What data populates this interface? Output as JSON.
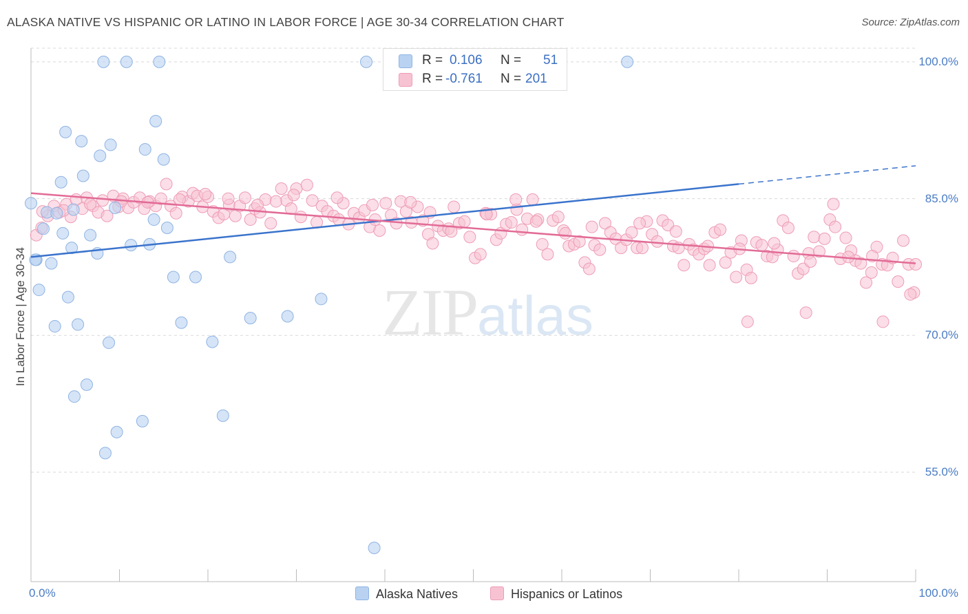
{
  "title": "ALASKA NATIVE VS HISPANIC OR LATINO IN LABOR FORCE | AGE 30-34 CORRELATION CHART",
  "source": "Source: ZipAtlas.com",
  "watermark": {
    "zip": "ZIP",
    "atlas": "atlas"
  },
  "colors": {
    "blue_fill": "#b9d2f1",
    "blue_stroke": "#8fb3e3",
    "blue_line": "#3a73cc",
    "pink_fill": "#f7c3d3",
    "pink_stroke": "#ee9cb6",
    "pink_line": "#e26b96",
    "tick_text": "#4a7cc4",
    "grid": "#d8d8d8"
  },
  "legend_top": {
    "rows": [
      {
        "r_label": "R =",
        "r_value": "0.106",
        "n_label": "N =",
        "n_value": "51"
      },
      {
        "r_label": "R =",
        "r_value": "-0.761",
        "n_label": "N =",
        "n_value": "201"
      }
    ]
  },
  "legend_bottom": [
    "Alaska Natives",
    "Hispanics or Latinos"
  ],
  "chart_data": {
    "type": "scatter",
    "title": "ALASKA NATIVE VS HISPANIC OR LATINO IN LABOR FORCE | AGE 30-34 CORRELATION CHART",
    "xlabel": "",
    "ylabel": "In Labor Force | Age 30-34",
    "xlim": [
      0,
      100
    ],
    "ylim": [
      43,
      101.5
    ],
    "x_tick_labels": [
      "0.0%",
      "100.0%"
    ],
    "y_ticks": [
      55,
      70,
      85,
      100
    ],
    "y_tick_labels": [
      "55.0%",
      "70.0%",
      "85.0%",
      "100.0%"
    ],
    "grid": true,
    "legend_position": "bottom",
    "series": [
      {
        "name": "Alaska Natives",
        "R": 0.106,
        "N": 51,
        "trend": {
          "x": [
            0,
            80
          ],
          "y": [
            78.6,
            86.6
          ],
          "dashed_to": [
            100,
            88.6
          ]
        },
        "points": [
          [
            8.2,
            100
          ],
          [
            10.8,
            100
          ],
          [
            14.5,
            100
          ],
          [
            37.9,
            100
          ],
          [
            67.4,
            100
          ],
          [
            14.1,
            93.5
          ],
          [
            3.9,
            92.3
          ],
          [
            5.7,
            91.3
          ],
          [
            9,
            90.9
          ],
          [
            12.9,
            90.4
          ],
          [
            7.8,
            89.7
          ],
          [
            15,
            89.3
          ],
          [
            5.9,
            87.5
          ],
          [
            3.4,
            86.8
          ],
          [
            0,
            84.5
          ],
          [
            1.8,
            83.5
          ],
          [
            2.9,
            83.4
          ],
          [
            4.8,
            83.8
          ],
          [
            9.5,
            84
          ],
          [
            13.9,
            82.7
          ],
          [
            1.4,
            81.7
          ],
          [
            3.6,
            81.2
          ],
          [
            6.7,
            81
          ],
          [
            15.4,
            81.8
          ],
          [
            11.3,
            79.9
          ],
          [
            13.4,
            80
          ],
          [
            4.6,
            79.6
          ],
          [
            7.5,
            79
          ],
          [
            0.6,
            78.3
          ],
          [
            2.3,
            77.9
          ],
          [
            22.5,
            78.6
          ],
          [
            16.1,
            76.4
          ],
          [
            18.6,
            76.4
          ],
          [
            0.9,
            75
          ],
          [
            4.2,
            74.2
          ],
          [
            32.8,
            74
          ],
          [
            2.7,
            71
          ],
          [
            5.3,
            71.2
          ],
          [
            17,
            71.4
          ],
          [
            24.8,
            71.9
          ],
          [
            29,
            72.1
          ],
          [
            8.8,
            69.2
          ],
          [
            20.5,
            69.3
          ],
          [
            6.3,
            64.6
          ],
          [
            4.9,
            63.3
          ],
          [
            12.6,
            60.6
          ],
          [
            21.7,
            61.2
          ],
          [
            9.7,
            59.4
          ],
          [
            8.4,
            57.1
          ],
          [
            38.8,
            46.7
          ],
          [
            0.5,
            78.3
          ]
        ]
      },
      {
        "name": "Hispanics or Latinos",
        "R": -0.761,
        "N": 201,
        "trend": {
          "x": [
            0,
            100
          ],
          "y": [
            85.6,
            77.9
          ]
        },
        "points": [
          [
            0.6,
            81
          ],
          [
            1.2,
            81.8
          ],
          [
            1.9,
            83.1
          ],
          [
            2.6,
            84.2
          ],
          [
            3.2,
            83.5
          ],
          [
            4,
            84.4
          ],
          [
            4.5,
            83
          ],
          [
            5.1,
            84.9
          ],
          [
            5.8,
            83.9
          ],
          [
            6.3,
            85.1
          ],
          [
            7,
            84.2
          ],
          [
            7.6,
            83.5
          ],
          [
            8.1,
            84.8
          ],
          [
            8.6,
            83.1
          ],
          [
            9.3,
            85.3
          ],
          [
            9.9,
            84.1
          ],
          [
            10.4,
            85
          ],
          [
            11,
            84
          ],
          [
            11.6,
            84.6
          ],
          [
            12.3,
            85.1
          ],
          [
            12.8,
            83.9
          ],
          [
            13.4,
            84.7
          ],
          [
            14.1,
            84.2
          ],
          [
            14.7,
            85
          ],
          [
            15.3,
            86.6
          ],
          [
            15.8,
            84.2
          ],
          [
            16.4,
            83.4
          ],
          [
            17.1,
            85.2
          ],
          [
            17.8,
            84.7
          ],
          [
            18.3,
            85.6
          ],
          [
            18.8,
            85.3
          ],
          [
            19.4,
            84.1
          ],
          [
            20,
            85.2
          ],
          [
            20.6,
            83.6
          ],
          [
            21.2,
            82.9
          ],
          [
            21.8,
            83.3
          ],
          [
            22.4,
            84.3
          ],
          [
            23.1,
            83.1
          ],
          [
            23.6,
            84.2
          ],
          [
            24.2,
            85.1
          ],
          [
            24.8,
            82.7
          ],
          [
            25.3,
            83.9
          ],
          [
            25.9,
            83.5
          ],
          [
            26.5,
            84.9
          ],
          [
            27.1,
            82.3
          ],
          [
            27.7,
            84.7
          ],
          [
            28.3,
            86.1
          ],
          [
            28.9,
            84.8
          ],
          [
            29.4,
            83.9
          ],
          [
            30,
            86.1
          ],
          [
            30.5,
            83
          ],
          [
            31.2,
            86.5
          ],
          [
            31.8,
            84.8
          ],
          [
            32.3,
            82.4
          ],
          [
            32.9,
            84.2
          ],
          [
            33.5,
            83.6
          ],
          [
            34.2,
            83.1
          ],
          [
            34.8,
            82.7
          ],
          [
            35.3,
            84.5
          ],
          [
            35.9,
            82.2
          ],
          [
            36.5,
            83.4
          ],
          [
            37.1,
            82.9
          ],
          [
            37.7,
            83.7
          ],
          [
            38.3,
            81.9
          ],
          [
            38.9,
            82.7
          ],
          [
            39.4,
            81.5
          ],
          [
            40.1,
            84.5
          ],
          [
            40.7,
            83.2
          ],
          [
            41.3,
            82.3
          ],
          [
            41.8,
            84.7
          ],
          [
            42.4,
            83.6
          ],
          [
            43,
            82.4
          ],
          [
            43.7,
            84.1
          ],
          [
            44.3,
            82.6
          ],
          [
            44.9,
            81.1
          ],
          [
            45.4,
            80.1
          ],
          [
            46,
            82
          ],
          [
            46.6,
            81.5
          ],
          [
            47.2,
            81.7
          ],
          [
            47.8,
            84.1
          ],
          [
            48.4,
            82.3
          ],
          [
            49,
            82.5
          ],
          [
            49.6,
            80.8
          ],
          [
            50.2,
            78.5
          ],
          [
            50.8,
            78.9
          ],
          [
            51.4,
            83.4
          ],
          [
            52,
            83.3
          ],
          [
            52.6,
            80.5
          ],
          [
            53.1,
            81.2
          ],
          [
            53.7,
            82.2
          ],
          [
            54.3,
            82.4
          ],
          [
            54.9,
            83.8
          ],
          [
            55.5,
            81.6
          ],
          [
            56.1,
            82.8
          ],
          [
            56.7,
            84.9
          ],
          [
            57.3,
            82.7
          ],
          [
            57.8,
            80
          ],
          [
            58.4,
            78.9
          ],
          [
            59,
            82.6
          ],
          [
            59.6,
            83
          ],
          [
            60.2,
            81.5
          ],
          [
            60.8,
            79.8
          ],
          [
            61.4,
            80
          ],
          [
            62,
            80.3
          ],
          [
            62.6,
            78
          ],
          [
            63.1,
            77.3
          ],
          [
            63.7,
            79.9
          ],
          [
            64.3,
            79.4
          ],
          [
            64.9,
            82.3
          ],
          [
            65.5,
            81.3
          ],
          [
            66.1,
            80.6
          ],
          [
            66.7,
            79.6
          ],
          [
            67.3,
            80.5
          ],
          [
            67.9,
            81.3
          ],
          [
            68.5,
            79.6
          ],
          [
            69.1,
            79.6
          ],
          [
            69.6,
            82.5
          ],
          [
            70.2,
            81.1
          ],
          [
            70.8,
            80.3
          ],
          [
            71.4,
            82.6
          ],
          [
            72,
            82.1
          ],
          [
            72.6,
            79.8
          ],
          [
            73.2,
            79.6
          ],
          [
            73.8,
            77.7
          ],
          [
            74.4,
            80
          ],
          [
            74.9,
            79.4
          ],
          [
            75.5,
            78.9
          ],
          [
            76.1,
            79.5
          ],
          [
            76.7,
            77.7
          ],
          [
            77.3,
            81.3
          ],
          [
            77.9,
            81.6
          ],
          [
            78.5,
            78
          ],
          [
            79.1,
            79.1
          ],
          [
            79.7,
            76.4
          ],
          [
            80.3,
            80.4
          ],
          [
            80.9,
            77.2
          ],
          [
            81.4,
            76.3
          ],
          [
            82,
            80.2
          ],
          [
            82.6,
            79.9
          ],
          [
            83.2,
            78.7
          ],
          [
            83.8,
            78.6
          ],
          [
            84.4,
            79.4
          ],
          [
            85,
            82.6
          ],
          [
            85.6,
            81.8
          ],
          [
            86.2,
            78.7
          ],
          [
            86.7,
            76.8
          ],
          [
            87.3,
            77.3
          ],
          [
            87.9,
            79
          ],
          [
            88.5,
            80.8
          ],
          [
            89.1,
            79.2
          ],
          [
            89.7,
            80.6
          ],
          [
            90.3,
            82.7
          ],
          [
            90.9,
            81.9
          ],
          [
            91.5,
            78.4
          ],
          [
            92.1,
            80.7
          ],
          [
            92.7,
            79.3
          ],
          [
            93.2,
            78.2
          ],
          [
            93.8,
            77.9
          ],
          [
            94.4,
            75.8
          ],
          [
            95,
            76.9
          ],
          [
            95.6,
            79.7
          ],
          [
            96.2,
            77.8
          ],
          [
            96.8,
            77.7
          ],
          [
            97.4,
            78.5
          ],
          [
            98,
            75.9
          ],
          [
            98.6,
            80.4
          ],
          [
            99.2,
            77.8
          ],
          [
            99.8,
            74.7
          ],
          [
            100,
            77.8
          ],
          [
            54.8,
            84.9
          ],
          [
            87.6,
            72.5
          ],
          [
            81,
            71.5
          ],
          [
            96.3,
            71.5
          ],
          [
            90.7,
            84.4
          ],
          [
            51.5,
            83.3
          ],
          [
            45.1,
            83.5
          ],
          [
            99.4,
            74.5
          ],
          [
            57.1,
            82.5
          ],
          [
            63.4,
            81.9
          ],
          [
            60.4,
            81.2
          ],
          [
            68.8,
            82.3
          ],
          [
            72.9,
            81.4
          ],
          [
            76.5,
            79.8
          ],
          [
            80.1,
            79.5
          ],
          [
            84,
            80.1
          ],
          [
            88.1,
            78.1
          ],
          [
            92.4,
            78.6
          ],
          [
            95.1,
            78.7
          ],
          [
            47.5,
            81.4
          ],
          [
            42.9,
            84.6
          ],
          [
            38.6,
            84.3
          ],
          [
            34.6,
            85.1
          ],
          [
            29.7,
            85.4
          ],
          [
            25.6,
            84.3
          ],
          [
            22.3,
            85
          ],
          [
            19.7,
            85.5
          ],
          [
            16.8,
            84.9
          ],
          [
            13.2,
            84.6
          ],
          [
            10.2,
            84.7
          ],
          [
            6.7,
            84.4
          ],
          [
            3.7,
            83.7
          ],
          [
            1.3,
            83.6
          ]
        ]
      }
    ]
  }
}
